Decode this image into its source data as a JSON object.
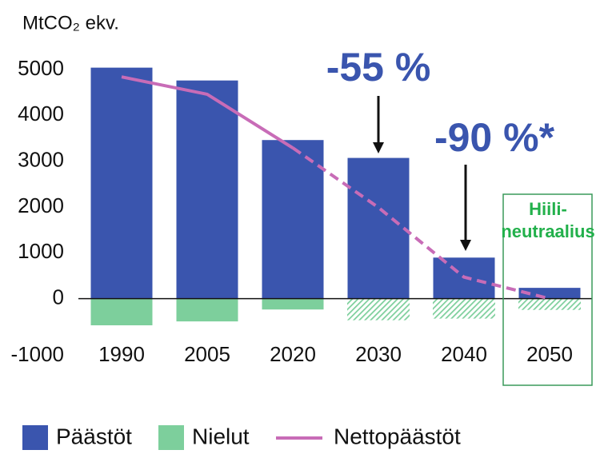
{
  "chart_data": {
    "type": "bar",
    "y_label": "MtCO₂ ekv.",
    "categories": [
      "1990",
      "2005",
      "2020",
      "2030",
      "2040",
      "2050"
    ],
    "series": [
      {
        "name": "Päästöt",
        "color": "#3a55ae",
        "values": [
          5050,
          4770,
          3470,
          3080,
          905,
          245
        ]
      },
      {
        "name": "Nielut",
        "color": "#7dcf9c",
        "values": [
          -590,
          -505,
          -245,
          -470,
          -435,
          -245
        ]
      },
      {
        "name": "Nettopäästöt",
        "color": "#c86cb7",
        "type": "line",
        "values": [
          4840,
          4460,
          3290,
          1990,
          470,
          0
        ]
      }
    ],
    "projected_categories": [
      "2030",
      "2040",
      "2050"
    ],
    "ylim": [
      -1000,
      5000
    ],
    "yticks": [
      -1000,
      0,
      1000,
      2000,
      3000,
      4000,
      5000
    ],
    "annotations": [
      {
        "text": "-55 %",
        "category": "2030"
      },
      {
        "text": "-90 %*",
        "category": "2040"
      },
      {
        "lines": [
          "Hiili-",
          "neutraalius"
        ],
        "category": "2050"
      }
    ]
  }
}
